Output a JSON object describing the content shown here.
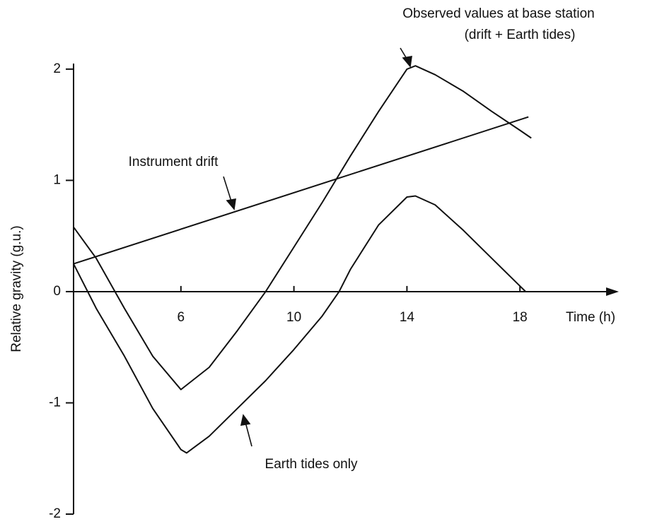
{
  "chart_data": {
    "type": "line",
    "x_label": "Time (h)",
    "y_label": "Relative gravity (g.u.)",
    "xlim": [
      2.2,
      21.5
    ],
    "ylim": [
      -2,
      2.05
    ],
    "xticks": [
      6,
      10,
      14,
      18
    ],
    "yticks": [
      -2,
      -1,
      0,
      1,
      2
    ],
    "grid": false,
    "annotations": [
      "Observed values at base station",
      "(drift + Earth tides)",
      "Instrument drift",
      "Earth tides only"
    ],
    "series": [
      {
        "name": "Instrument drift",
        "color": "#111111",
        "x": [
          2.2,
          18.3
        ],
        "values": [
          0.25,
          1.57
        ]
      },
      {
        "name": "Observed values at base station (drift + Earth tides)",
        "color": "#111111",
        "x": [
          2.2,
          3,
          4,
          5,
          6,
          7,
          8,
          9,
          10,
          11,
          12,
          13,
          14,
          14.3,
          15,
          16,
          17,
          18,
          18.4
        ],
        "values": [
          0.58,
          0.3,
          -0.15,
          -0.58,
          -0.88,
          -0.68,
          -0.35,
          0.0,
          0.4,
          0.8,
          1.22,
          1.62,
          2.0,
          2.03,
          1.95,
          1.8,
          1.62,
          1.45,
          1.38
        ]
      },
      {
        "name": "Earth tides only",
        "color": "#111111",
        "x": [
          2.2,
          3,
          4,
          5,
          6,
          6.2,
          7,
          8,
          9,
          10,
          11,
          11.6,
          12,
          13,
          14,
          14.3,
          15,
          16,
          17,
          18,
          18.2
        ],
        "values": [
          0.25,
          -0.15,
          -0.58,
          -1.05,
          -1.42,
          -1.45,
          -1.3,
          -1.05,
          -0.8,
          -0.52,
          -0.22,
          0.0,
          0.2,
          0.6,
          0.85,
          0.86,
          0.78,
          0.55,
          0.3,
          0.05,
          0.0
        ]
      }
    ]
  }
}
